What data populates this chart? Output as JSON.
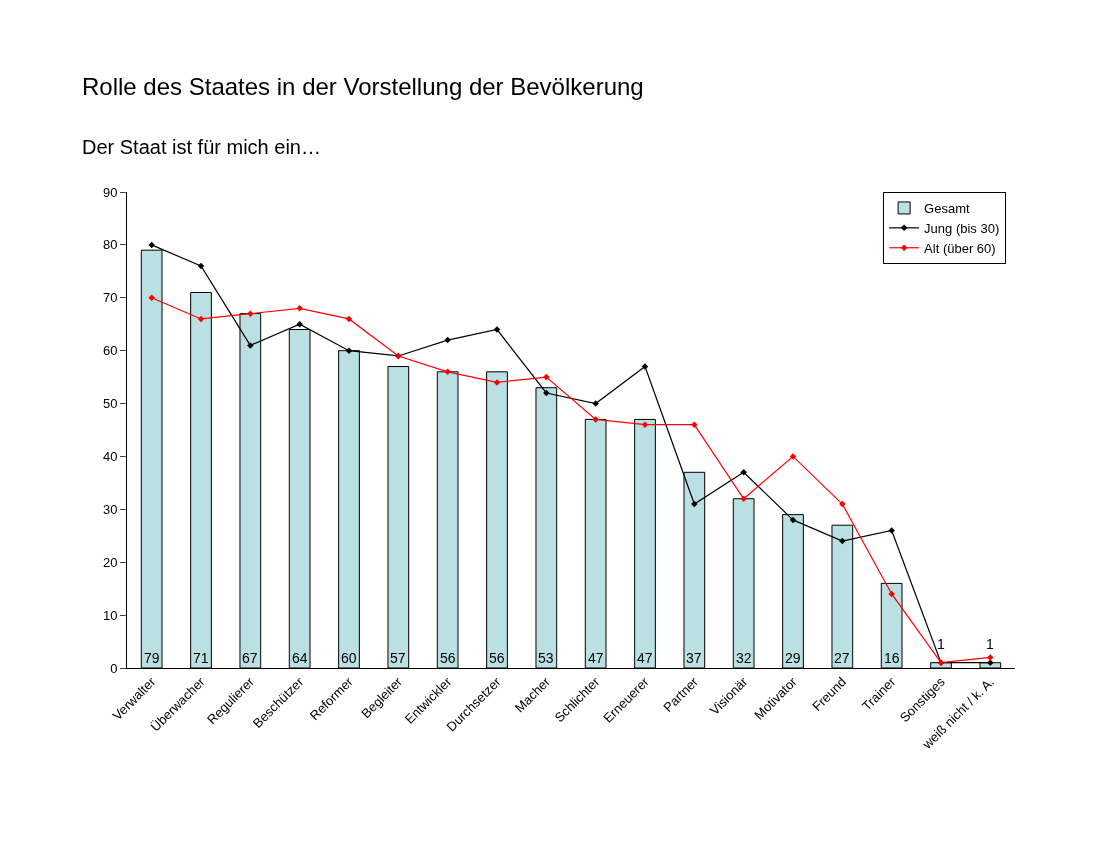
{
  "chart_data": {
    "type": "bar",
    "title": "Rolle des Staates in der Vorstellung der Bevölkerung",
    "subtitle": "Der Staat ist für mich ein…",
    "categories": [
      "Verwalter",
      "Überwacher",
      "Regulierer",
      "Beschützer",
      "Reformer",
      "Begleiter",
      "Entwickler",
      "Durchsetzer",
      "Macher",
      "Schlichter",
      "Erneuerer",
      "Partner",
      "Visionär",
      "Motivator",
      "Freund",
      "Trainer",
      "Sonstiges",
      "weiß nicht / k. A."
    ],
    "series": [
      {
        "name": "Gesamt",
        "color": "#bbe0e3",
        "values": [
          79,
          71,
          67,
          64,
          60,
          57,
          56,
          56,
          53,
          47,
          47,
          37,
          32,
          29,
          27,
          16,
          1,
          1
        ],
        "value_labels": [
          "79",
          "71",
          "67",
          "64",
          "60",
          "57",
          "56",
          "56",
          "53",
          "47",
          "47",
          "37",
          "32",
          "29",
          "27",
          "16",
          "1",
          "1"
        ]
      },
      {
        "name": "Jung (bis 30)",
        "type": "line",
        "color": "#000000",
        "values": [
          80,
          76,
          61,
          65,
          60,
          59,
          62,
          64,
          52,
          50,
          57,
          31,
          37,
          28,
          24,
          26,
          1,
          1
        ]
      },
      {
        "name": "Alt (über 60)",
        "type": "line",
        "color": "#ff0000",
        "values": [
          70,
          66,
          67,
          68,
          66,
          59,
          56,
          54,
          55,
          47,
          46,
          46,
          32,
          40,
          31,
          14,
          1,
          2
        ]
      }
    ],
    "ylim": [
      0,
      90
    ],
    "yticks": [
      0,
      10,
      20,
      30,
      40,
      50,
      60,
      70,
      80,
      90
    ],
    "grid": false,
    "legend": "top right",
    "marker": "diamond",
    "line_style": "solid"
  }
}
